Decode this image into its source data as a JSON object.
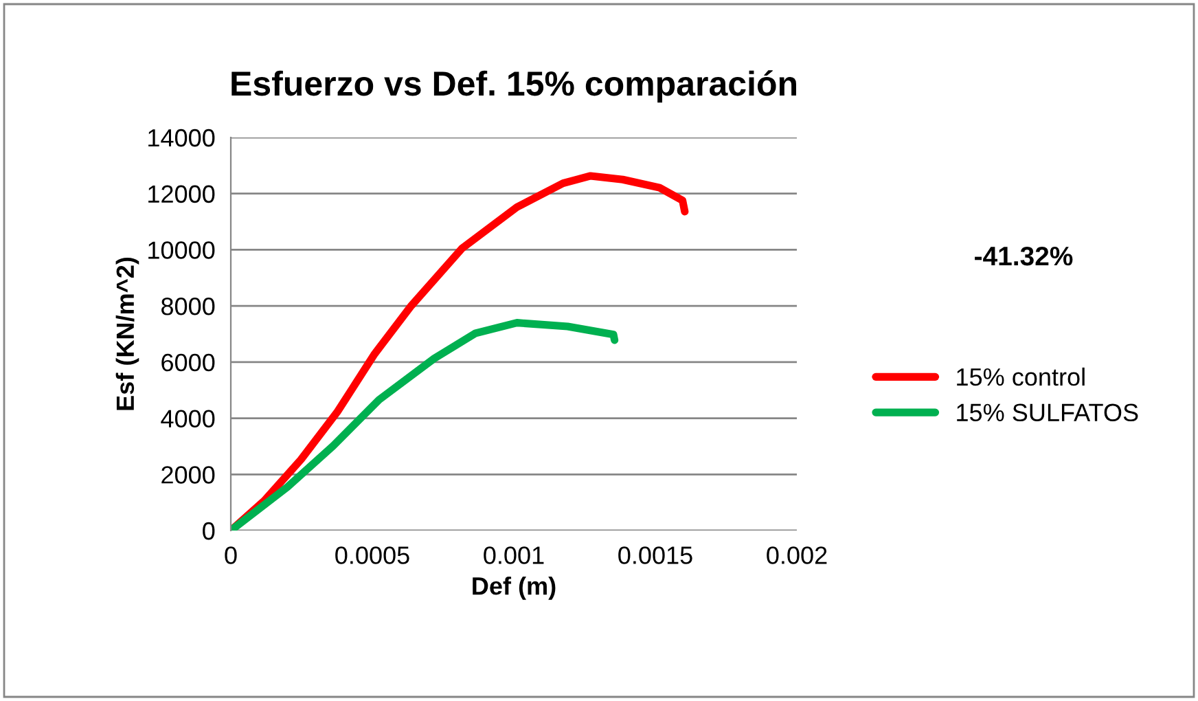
{
  "chart_data": {
    "type": "line",
    "title": "Esfuerzo vs Def. 15% comparación",
    "xlabel": "Def (m)",
    "ylabel": "Esf (KN/m^2)",
    "annotations": [
      "-41.32%"
    ],
    "series": [
      {
        "name": "15% control",
        "color": "#ff0000",
        "x": [
          0,
          0.000118,
          0.000248,
          0.000378,
          0.000508,
          0.000638,
          0.000817,
          0.001011,
          0.001174,
          0.001271,
          0.001385,
          0.001515,
          0.001596,
          0.001604
        ],
        "values": [
          0,
          1060,
          2530,
          4250,
          6290,
          8010,
          10050,
          11520,
          12370,
          12630,
          12500,
          12210,
          11760,
          11360
        ]
      },
      {
        "name": "15% SULFATOS",
        "color": "#00b050",
        "x": [
          0,
          0.0002,
          0.000362,
          0.000524,
          0.000719,
          0.000865,
          0.001011,
          0.00119,
          0.001352,
          0.001356
        ],
        "values": [
          0,
          1550,
          3020,
          4660,
          6130,
          7030,
          7400,
          7270,
          6980,
          6780
        ]
      }
    ],
    "xlim": [
      0,
      0.002
    ],
    "xticks": [
      0,
      0.0005,
      0.001,
      0.0015,
      0.002
    ],
    "ylim": [
      0,
      14000
    ],
    "yticks": [
      0,
      2000,
      4000,
      6000,
      8000,
      10000,
      12000,
      14000
    ],
    "grid": "y",
    "legend": "right",
    "marker": "none",
    "line_style": "solid"
  }
}
